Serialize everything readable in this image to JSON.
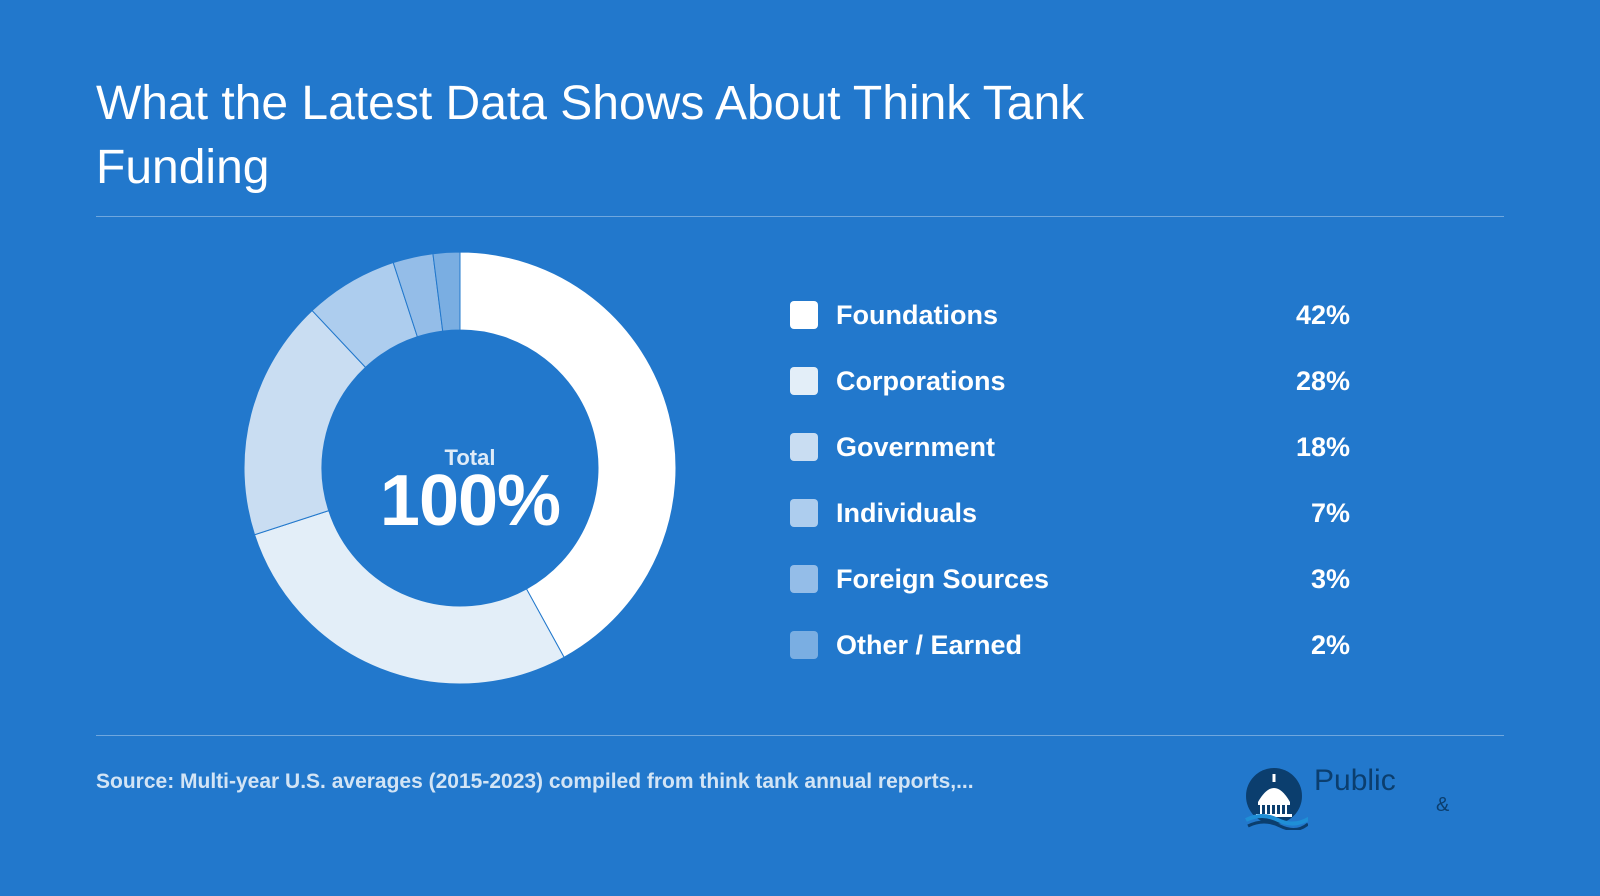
{
  "slide": {
    "title": "What the Latest Data Shows About Think Tank Funding",
    "source": "Source: Multi-year U.S. averages (2015-2023) compiled from think tank annual reports,..."
  },
  "chart_data": {
    "type": "pie",
    "center_label": "Total",
    "center_value": "100%",
    "slices": [
      {
        "label": "Foundations",
        "value": 42,
        "display": "42%",
        "color": "#ffffff"
      },
      {
        "label": "Corporations",
        "value": 28,
        "display": "28%",
        "color": "#e3eef8"
      },
      {
        "label": "Government",
        "value": 18,
        "display": "18%",
        "color": "#c9ddf2"
      },
      {
        "label": "Individuals",
        "value": 7,
        "display": "7%",
        "color": "#adcdee"
      },
      {
        "label": "Foreign Sources",
        "value": 3,
        "display": "3%",
        "color": "#94bde8"
      },
      {
        "label": "Other / Earned",
        "value": 2,
        "display": "2%",
        "color": "#7aaee2"
      }
    ]
  },
  "logo": {
    "word": "Public",
    "amp": "&",
    "icon": "capitol-dome-icon",
    "color": "#0b3e6e"
  }
}
